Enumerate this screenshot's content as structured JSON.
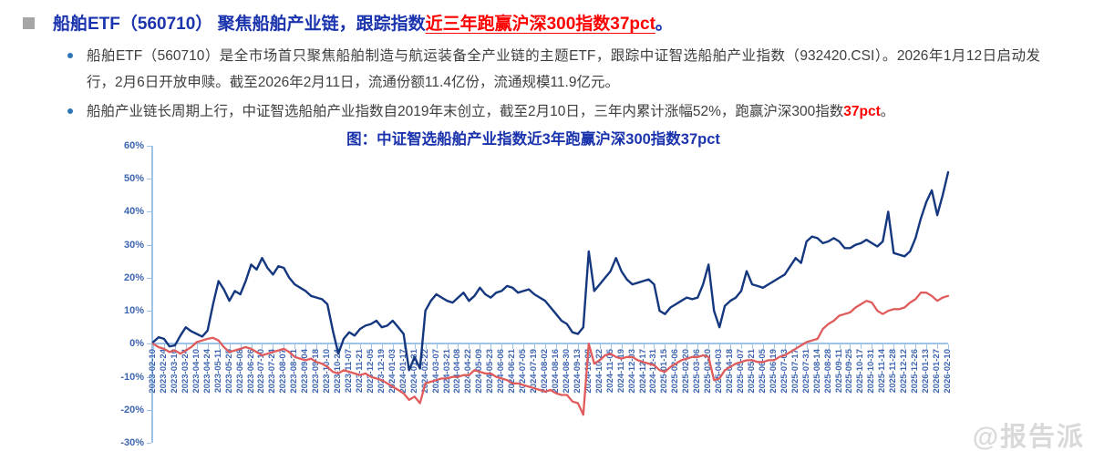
{
  "header": {
    "marker": "■",
    "title_main": "船舶ETF（560710） 聚焦船舶产业链，跟踪指数",
    "title_red": "近三年跑赢沪深300指数37pct",
    "title_end": "。"
  },
  "bullets": [
    {
      "pre": "船舶ETF（560710）是全市场首只聚焦船舶制造与航运装备全产业链的主题ETF，跟踪中证智选船舶产业指数（932420.CSI）。2026年1月12日启动发行，2月6日开放申赎。截至2026年2月11日，流通份额11.4亿份，流通规模11.9亿元。",
      "red": "",
      "post": ""
    },
    {
      "pre": "船舶产业链长周期上行，中证智选船舶产业指数自2019年末创立，截至2月10日，三年内累计涨幅52%，跑赢沪深300指数",
      "red": "37pct",
      "post": "。"
    }
  ],
  "chart_data": {
    "type": "line",
    "title": "图：中证智选船舶产业指数近3年跑赢沪深300指数37pct",
    "xlabel": "",
    "ylabel": "",
    "ylim": [
      -30,
      60
    ],
    "grid": false,
    "legend_position": "none",
    "y_tick_labels": [
      "60%",
      "50%",
      "40%",
      "30%",
      "20%",
      "10%",
      "0%",
      "-10%",
      "-20%",
      "-30%"
    ],
    "y_tick_values": [
      60,
      50,
      40,
      30,
      20,
      10,
      0,
      -10,
      -20,
      -30
    ],
    "x_labels": [
      "2023-02-10",
      "2023-02-24",
      "2023-03-10",
      "2023-03-24",
      "2023-04-10",
      "2023-04-24",
      "2023-05-11",
      "2023-05-25",
      "2023-06-08",
      "2023-06-26",
      "2023-07-10",
      "2023-07-24",
      "2023-08-07",
      "2023-08-21",
      "2023-09-04",
      "2023-09-18",
      "2023-10-10",
      "2023-10-24",
      "2023-11-07",
      "2023-11-21",
      "2023-12-05",
      "2023-12-19",
      "2024-01-03",
      "2024-01-17",
      "2024-01-31",
      "2024-02-22",
      "2024-03-07",
      "2024-03-21",
      "2024-04-08",
      "2024-04-22",
      "2024-05-09",
      "2024-05-23",
      "2024-06-06",
      "2024-06-21",
      "2024-07-05",
      "2024-07-19",
      "2024-08-02",
      "2024-08-16",
      "2024-08-30",
      "2024-09-13",
      "2024-10-08",
      "2024-10-22",
      "2024-11-05",
      "2024-11-19",
      "2024-12-03",
      "2024-12-17",
      "2024-12-31",
      "2025-01-15",
      "2025-02-06",
      "2025-02-20",
      "2025-03-06",
      "2025-03-20",
      "2025-04-03",
      "2025-04-18",
      "2025-05-07",
      "2025-05-21",
      "2025-06-05",
      "2025-06-19",
      "2025-07-03",
      "2025-07-17",
      "2025-07-31",
      "2025-08-14",
      "2025-08-28",
      "2025-09-11",
      "2025-09-25",
      "2025-10-17",
      "2025-10-31",
      "2025-11-14",
      "2025-11-28",
      "2025-12-12",
      "2025-12-26",
      "2026-01-13",
      "2026-01-27",
      "2026-02-10"
    ],
    "points_per_tick_interval": 2,
    "colors": {
      "axis": "#9dc3e6",
      "tick_label": "#3c64b0"
    },
    "series": [
      {
        "name": "中证智选船舶产业指数",
        "color": "#14377f",
        "unit": "%",
        "values": [
          0.5,
          2,
          1.5,
          -0.8,
          -0.5,
          2.5,
          5,
          3.8,
          3,
          2.2,
          4,
          12,
          19,
          16.5,
          13,
          16,
          15,
          19,
          24,
          22.5,
          26,
          23,
          21,
          23.5,
          23,
          20,
          18,
          17,
          16,
          14.5,
          14,
          13.5,
          12,
          4,
          -3,
          1.5,
          3.5,
          2.5,
          4.5,
          5.5,
          6,
          7,
          5,
          5.5,
          7,
          5,
          3,
          -8,
          -4,
          -7.5,
          10,
          13,
          15,
          14,
          13,
          12.5,
          14,
          15.5,
          13,
          14.5,
          17,
          15,
          14,
          15.5,
          16,
          17.5,
          17,
          15.5,
          16,
          16.5,
          15,
          14,
          13,
          11,
          9,
          7,
          6,
          3.5,
          3,
          5,
          28,
          16,
          18,
          20,
          22,
          26,
          22,
          19.5,
          18,
          18.5,
          19,
          19.5,
          18,
          10,
          9,
          11,
          12,
          13,
          14,
          13.5,
          14,
          18,
          24,
          10,
          5,
          11.5,
          13,
          14,
          16,
          22,
          18,
          17.5,
          17,
          18,
          19,
          20,
          21,
          23.5,
          26,
          24.5,
          31,
          32.5,
          32,
          30.5,
          31,
          32,
          31,
          29,
          29,
          30,
          30.5,
          31.5,
          30.5,
          29.5,
          31,
          40,
          27.5,
          27,
          26.5,
          28,
          32,
          38,
          43,
          46.5,
          39,
          45,
          52
        ]
      },
      {
        "name": "沪深300指数",
        "color": "#e05c5c",
        "unit": "%",
        "values": [
          0,
          -1,
          -1.5,
          -2.5,
          -2,
          -3,
          -2,
          -1,
          0.5,
          1,
          1.5,
          1.8,
          1,
          -1,
          -2.5,
          -2,
          -1.5,
          -1,
          -1.5,
          -2.5,
          -3.5,
          -3,
          -2.5,
          -2,
          -1.5,
          -2.5,
          -4,
          -4.5,
          -5,
          -4.5,
          -5.5,
          -6,
          -7,
          -8.5,
          -9,
          -8,
          -8.5,
          -9,
          -9.5,
          -9,
          -10,
          -10.5,
          -11,
          -12,
          -13,
          -14,
          -15,
          -17,
          -16,
          -18,
          -12,
          -11.5,
          -11,
          -10.5,
          -10.5,
          -10,
          -10,
          -9.5,
          -9.5,
          -8,
          -8.5,
          -9,
          -9,
          -10,
          -10.5,
          -11,
          -12,
          -12,
          -12.5,
          -13,
          -13.5,
          -14,
          -14.5,
          -14,
          -15,
          -15.5,
          -15.5,
          -17.5,
          -18,
          -21.5,
          0,
          -6,
          -5,
          -3.5,
          -3,
          -4,
          -4.5,
          -4,
          -4,
          -5,
          -5.5,
          -6,
          -6.5,
          -8,
          -8.5,
          -7,
          -6,
          -5,
          -4.5,
          -4,
          -4,
          -3.5,
          -4,
          -11,
          -10.5,
          -8,
          -7,
          -6,
          -5.5,
          -5,
          -5,
          -5.5,
          -5.5,
          -5,
          -5,
          -4,
          -3.5,
          -2.5,
          -1.5,
          -0.5,
          0.5,
          1,
          1.5,
          4.5,
          6,
          7,
          8.5,
          9,
          9.5,
          11,
          12,
          13,
          12.5,
          10,
          9,
          10,
          10.5,
          10.5,
          11,
          12.5,
          13.5,
          15.5,
          15.5,
          14.5,
          13,
          14,
          14.5
        ]
      }
    ]
  },
  "watermark": "@报告派"
}
